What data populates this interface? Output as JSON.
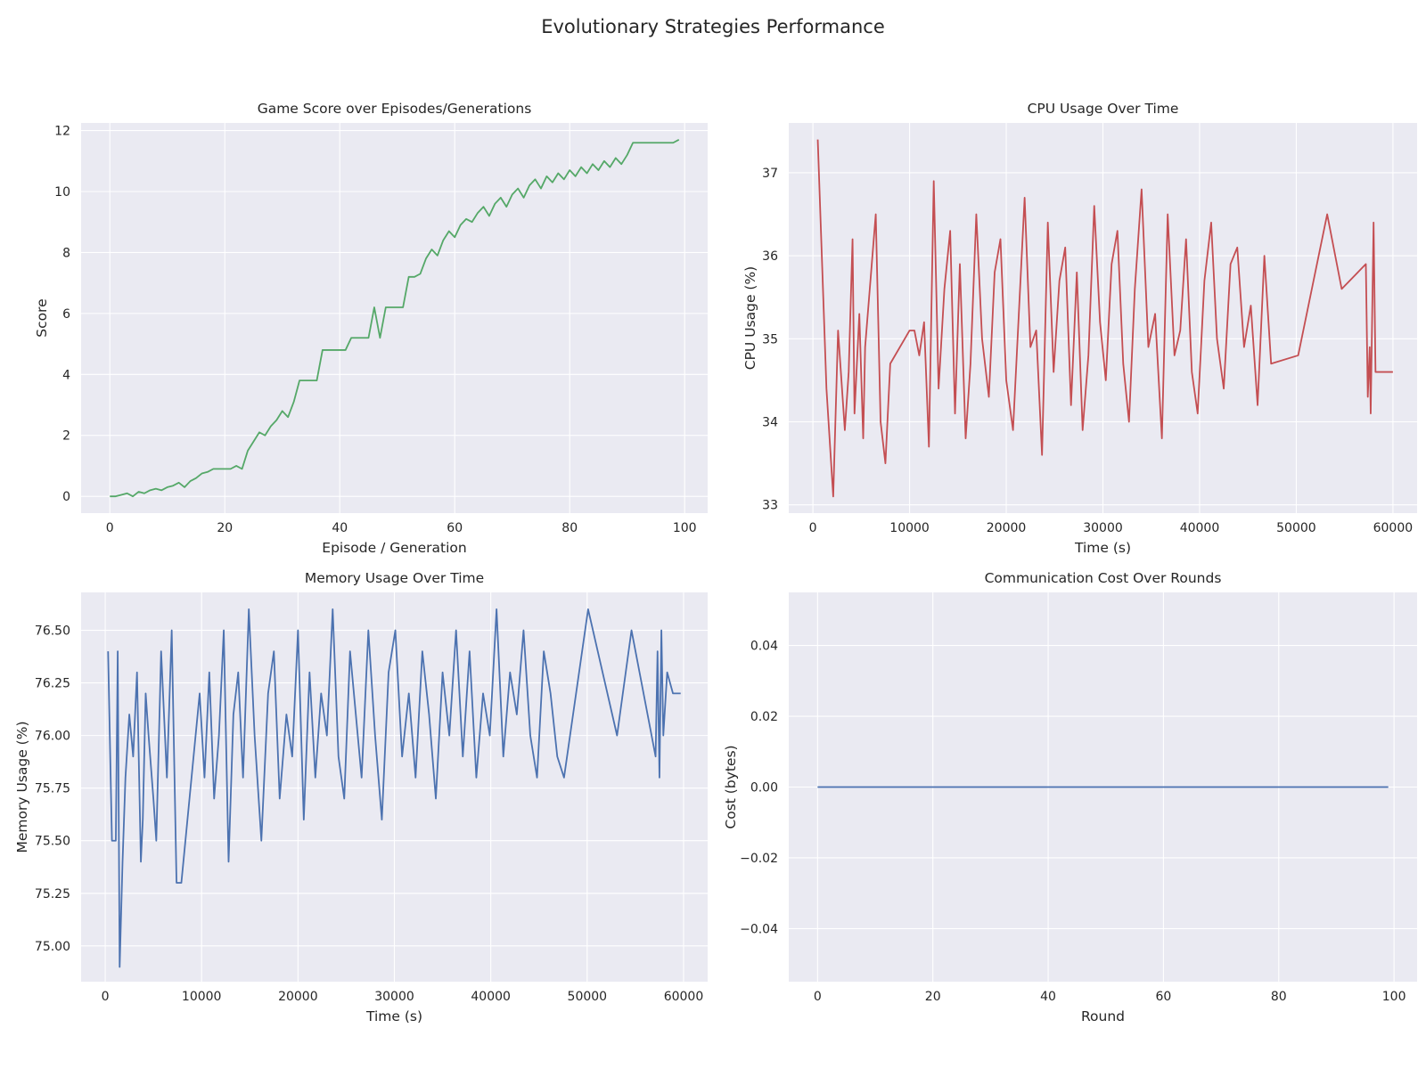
{
  "suptitle": "Evolutionary Strategies Performance",
  "colors": {
    "background": "#eaeaf2",
    "grid": "#ffffff",
    "green": "#55a868",
    "red": "#c44e52",
    "blue": "#4c72b0"
  },
  "chart_data": [
    {
      "id": "score",
      "type": "line",
      "title": "Game Score over Episodes/Generations",
      "xlabel": "Episode / Generation",
      "ylabel": "Score",
      "xlim": [
        -5,
        104
      ],
      "ylim": [
        -0.55,
        12.25
      ],
      "xticks": [
        0,
        20,
        40,
        60,
        80,
        100
      ],
      "yticks": [
        0,
        2,
        4,
        6,
        8,
        10,
        12
      ],
      "ytick_labels": [
        "0",
        "2",
        "4",
        "6",
        "8",
        "10",
        "12"
      ],
      "color": "#55a868",
      "grid": true,
      "x": [
        0,
        1,
        2,
        3,
        4,
        5,
        6,
        7,
        8,
        9,
        10,
        11,
        12,
        13,
        14,
        15,
        16,
        17,
        18,
        19,
        20,
        21,
        22,
        23,
        24,
        25,
        26,
        27,
        28,
        29,
        30,
        31,
        32,
        33,
        34,
        35,
        36,
        37,
        38,
        39,
        40,
        41,
        42,
        43,
        44,
        45,
        46,
        47,
        48,
        49,
        50,
        51,
        52,
        53,
        54,
        55,
        56,
        57,
        58,
        59,
        60,
        61,
        62,
        63,
        64,
        65,
        66,
        67,
        68,
        69,
        70,
        71,
        72,
        73,
        74,
        75,
        76,
        77,
        78,
        79,
        80,
        81,
        82,
        83,
        84,
        85,
        86,
        87,
        88,
        89,
        90,
        91,
        92,
        93,
        94,
        95,
        96,
        97,
        98,
        99
      ],
      "y": [
        0,
        0,
        0.05,
        0.1,
        0,
        0.15,
        0.1,
        0.2,
        0.25,
        0.2,
        0.3,
        0.35,
        0.45,
        0.3,
        0.5,
        0.6,
        0.75,
        0.8,
        0.9,
        0.9,
        0.9,
        0.9,
        1.0,
        0.9,
        1.5,
        1.8,
        2.1,
        2.0,
        2.3,
        2.5,
        2.8,
        2.6,
        3.1,
        3.8,
        3.8,
        3.8,
        3.8,
        4.8,
        4.8,
        4.8,
        4.8,
        4.8,
        5.2,
        5.2,
        5.2,
        5.2,
        6.2,
        5.2,
        6.2,
        6.2,
        6.2,
        6.2,
        7.2,
        7.2,
        7.3,
        7.8,
        8.1,
        7.9,
        8.4,
        8.7,
        8.5,
        8.9,
        9.1,
        9.0,
        9.3,
        9.5,
        9.2,
        9.6,
        9.8,
        9.5,
        9.9,
        10.1,
        9.8,
        10.2,
        10.4,
        10.1,
        10.5,
        10.3,
        10.6,
        10.4,
        10.7,
        10.5,
        10.8,
        10.6,
        10.9,
        10.7,
        11.0,
        10.8,
        11.1,
        10.9,
        11.2,
        11.6,
        11.6,
        11.6,
        11.6,
        11.6,
        11.6,
        11.6,
        11.6,
        11.7
      ]
    },
    {
      "id": "cpu",
      "type": "line",
      "title": "CPU Usage Over Time",
      "xlabel": "Time (s)",
      "ylabel": "CPU Usage (%)",
      "xlim": [
        -2500,
        62500
      ],
      "ylim": [
        32.9,
        37.6
      ],
      "xticks": [
        0,
        10000,
        20000,
        30000,
        40000,
        50000,
        60000
      ],
      "yticks": [
        33,
        34,
        35,
        36,
        37
      ],
      "ytick_labels": [
        "33",
        "34",
        "35",
        "36",
        "37"
      ],
      "color": "#c44e52",
      "grid": true,
      "x": [
        500,
        1400,
        2100,
        2600,
        3300,
        3700,
        4100,
        4300,
        4800,
        5200,
        5400,
        6500,
        7000,
        7500,
        8000,
        10000,
        10500,
        11000,
        11500,
        12000,
        12500,
        13000,
        13600,
        14200,
        14700,
        15200,
        15800,
        16300,
        16900,
        17500,
        18200,
        18800,
        19400,
        20000,
        20700,
        21300,
        21900,
        22500,
        23100,
        23700,
        24300,
        24900,
        25500,
        26100,
        26700,
        27300,
        27900,
        28500,
        29100,
        29700,
        30300,
        30900,
        31500,
        32100,
        32700,
        33300,
        34000,
        34700,
        35400,
        36100,
        36700,
        37400,
        38000,
        38600,
        39200,
        39800,
        40500,
        41200,
        41800,
        42500,
        43200,
        43900,
        44600,
        45300,
        46000,
        46700,
        47400,
        50200,
        53200,
        54700,
        57200,
        57400,
        57600,
        57700,
        58000,
        58200,
        58900,
        59400,
        60000
      ],
      "y": [
        37.4,
        34.4,
        33.1,
        35.1,
        33.9,
        34.6,
        36.2,
        34.1,
        35.3,
        33.8,
        34.9,
        36.5,
        34.0,
        33.5,
        34.7,
        35.1,
        35.1,
        34.8,
        35.2,
        33.7,
        36.9,
        34.4,
        35.6,
        36.3,
        34.1,
        35.9,
        33.8,
        34.7,
        36.5,
        35.0,
        34.3,
        35.8,
        36.2,
        34.5,
        33.9,
        35.3,
        36.7,
        34.9,
        35.1,
        33.6,
        36.4,
        34.6,
        35.7,
        36.1,
        34.2,
        35.8,
        33.9,
        34.8,
        36.6,
        35.2,
        34.5,
        35.9,
        36.3,
        34.7,
        34.0,
        35.6,
        36.8,
        34.9,
        35.3,
        33.8,
        36.5,
        34.8,
        35.1,
        36.2,
        34.6,
        34.1,
        35.7,
        36.4,
        35.0,
        34.4,
        35.9,
        36.1,
        34.9,
        35.4,
        34.2,
        36.0,
        34.7,
        34.8,
        36.5,
        35.6,
        35.9,
        34.3,
        34.9,
        34.1,
        36.4,
        34.6,
        34.6,
        34.6,
        34.6
      ]
    },
    {
      "id": "memory",
      "type": "line",
      "title": "Memory Usage Over Time",
      "xlabel": "Time (s)",
      "ylabel": "Memory Usage (%)",
      "xlim": [
        -2500,
        62500
      ],
      "ylim": [
        74.83,
        76.68
      ],
      "xticks": [
        0,
        10000,
        20000,
        30000,
        40000,
        50000,
        60000
      ],
      "yticks": [
        75.0,
        75.25,
        75.5,
        75.75,
        76.0,
        76.25,
        76.5
      ],
      "ytick_labels": [
        "75.00",
        "75.25",
        "75.50",
        "75.75",
        "76.00",
        "76.25",
        "76.50"
      ],
      "color": "#4c72b0",
      "grid": true,
      "x": [
        300,
        700,
        1100,
        1300,
        1500,
        1800,
        2100,
        2500,
        2900,
        3300,
        3700,
        3900,
        4200,
        4500,
        5000,
        5300,
        5800,
        6400,
        6900,
        7400,
        7900,
        9800,
        10300,
        10800,
        11300,
        11800,
        12300,
        12800,
        13300,
        13800,
        14300,
        14900,
        15500,
        16200,
        16900,
        17500,
        18100,
        18800,
        19400,
        20000,
        20600,
        21200,
        21800,
        22400,
        23000,
        23600,
        24200,
        24800,
        25400,
        26000,
        26600,
        27300,
        28000,
        28700,
        29400,
        30100,
        30800,
        31500,
        32200,
        32900,
        33600,
        34300,
        35000,
        35700,
        36400,
        37100,
        37800,
        38500,
        39200,
        39900,
        40600,
        41300,
        42000,
        42700,
        43400,
        44100,
        44800,
        45500,
        46200,
        46900,
        47600,
        50100,
        53100,
        54600,
        57100,
        57300,
        57400,
        57500,
        57700,
        57900,
        58300,
        58900,
        59300,
        59700
      ],
      "y": [
        76.4,
        75.5,
        75.5,
        76.4,
        74.9,
        75.4,
        75.8,
        76.1,
        75.9,
        76.3,
        75.4,
        75.6,
        76.2,
        76.0,
        75.7,
        75.5,
        76.4,
        75.8,
        76.5,
        75.3,
        75.3,
        76.2,
        75.8,
        76.3,
        75.7,
        76.0,
        76.5,
        75.4,
        76.1,
        76.3,
        75.8,
        76.6,
        76.0,
        75.5,
        76.2,
        76.4,
        75.7,
        76.1,
        75.9,
        76.5,
        75.6,
        76.3,
        75.8,
        76.2,
        76.0,
        76.6,
        75.9,
        75.7,
        76.4,
        76.1,
        75.8,
        76.5,
        76.0,
        75.6,
        76.3,
        76.5,
        75.9,
        76.2,
        75.8,
        76.4,
        76.1,
        75.7,
        76.3,
        76.0,
        76.5,
        75.9,
        76.4,
        75.8,
        76.2,
        76.0,
        76.6,
        75.9,
        76.3,
        76.1,
        76.5,
        76.0,
        75.8,
        76.4,
        76.2,
        75.9,
        75.8,
        76.6,
        76.0,
        76.5,
        75.9,
        76.4,
        76.1,
        75.8,
        76.5,
        76.0,
        76.3,
        76.2,
        76.2,
        76.2
      ]
    },
    {
      "id": "comm",
      "type": "line",
      "title": "Communication Cost Over Rounds",
      "xlabel": "Round",
      "ylabel": "Cost (bytes)",
      "xlim": [
        -5,
        104
      ],
      "ylim": [
        -0.055,
        0.055
      ],
      "xticks": [
        0,
        20,
        40,
        60,
        80,
        100
      ],
      "yticks": [
        -0.04,
        -0.02,
        0.0,
        0.02,
        0.04
      ],
      "ytick_labels": [
        "−0.04",
        "−0.02",
        "0.00",
        "0.02",
        "0.04"
      ],
      "color": "#4c72b0",
      "grid": true,
      "x": [
        0,
        99
      ],
      "y": [
        0,
        0
      ]
    }
  ]
}
